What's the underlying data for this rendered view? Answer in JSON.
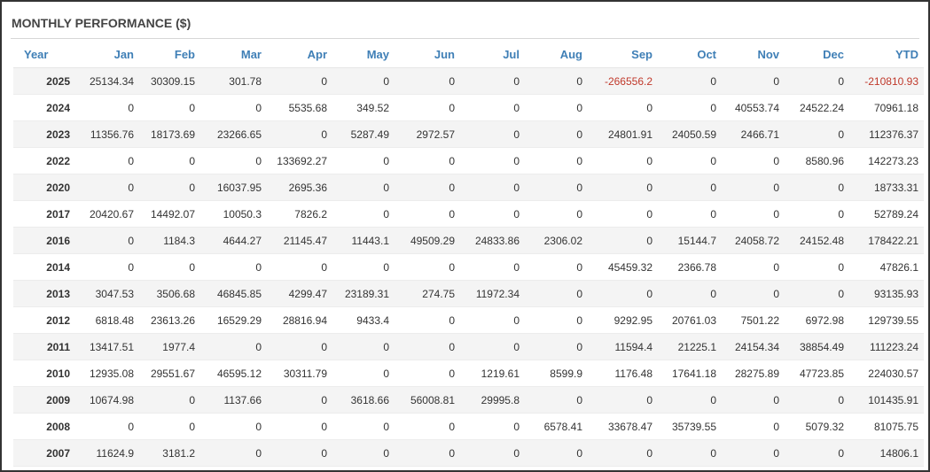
{
  "colors": {
    "header_text": "#3f7fb6",
    "negative_text": "#c0392b",
    "stripe": "#f4f4f4"
  },
  "chart_data": {
    "type": "table",
    "title": "MONTHLY PERFORMANCE ($)",
    "columns": [
      "Year",
      "Jan",
      "Feb",
      "Mar",
      "Apr",
      "May",
      "Jun",
      "Jul",
      "Aug",
      "Sep",
      "Oct",
      "Nov",
      "Dec",
      "YTD"
    ],
    "rows": [
      [
        "2025",
        "25134.34",
        "30309.15",
        "301.78",
        "0",
        "0",
        "0",
        "0",
        "0",
        "-266556.2",
        "0",
        "0",
        "0",
        "-210810.93"
      ],
      [
        "2024",
        "0",
        "0",
        "0",
        "5535.68",
        "349.52",
        "0",
        "0",
        "0",
        "0",
        "0",
        "40553.74",
        "24522.24",
        "70961.18"
      ],
      [
        "2023",
        "11356.76",
        "18173.69",
        "23266.65",
        "0",
        "5287.49",
        "2972.57",
        "0",
        "0",
        "24801.91",
        "24050.59",
        "2466.71",
        "0",
        "112376.37"
      ],
      [
        "2022",
        "0",
        "0",
        "0",
        "133692.27",
        "0",
        "0",
        "0",
        "0",
        "0",
        "0",
        "0",
        "8580.96",
        "142273.23"
      ],
      [
        "2020",
        "0",
        "0",
        "16037.95",
        "2695.36",
        "0",
        "0",
        "0",
        "0",
        "0",
        "0",
        "0",
        "0",
        "18733.31"
      ],
      [
        "2017",
        "20420.67",
        "14492.07",
        "10050.3",
        "7826.2",
        "0",
        "0",
        "0",
        "0",
        "0",
        "0",
        "0",
        "0",
        "52789.24"
      ],
      [
        "2016",
        "0",
        "1184.3",
        "4644.27",
        "21145.47",
        "11443.1",
        "49509.29",
        "24833.86",
        "2306.02",
        "0",
        "15144.7",
        "24058.72",
        "24152.48",
        "178422.21"
      ],
      [
        "2014",
        "0",
        "0",
        "0",
        "0",
        "0",
        "0",
        "0",
        "0",
        "45459.32",
        "2366.78",
        "0",
        "0",
        "47826.1"
      ],
      [
        "2013",
        "3047.53",
        "3506.68",
        "46845.85",
        "4299.47",
        "23189.31",
        "274.75",
        "11972.34",
        "0",
        "0",
        "0",
        "0",
        "0",
        "93135.93"
      ],
      [
        "2012",
        "6818.48",
        "23613.26",
        "16529.29",
        "28816.94",
        "9433.4",
        "0",
        "0",
        "0",
        "9292.95",
        "20761.03",
        "7501.22",
        "6972.98",
        "129739.55"
      ],
      [
        "2011",
        "13417.51",
        "1977.4",
        "0",
        "0",
        "0",
        "0",
        "0",
        "0",
        "11594.4",
        "21225.1",
        "24154.34",
        "38854.49",
        "111223.24"
      ],
      [
        "2010",
        "12935.08",
        "29551.67",
        "46595.12",
        "30311.79",
        "0",
        "0",
        "1219.61",
        "8599.9",
        "1176.48",
        "17641.18",
        "28275.89",
        "47723.85",
        "224030.57"
      ],
      [
        "2009",
        "10674.98",
        "0",
        "1137.66",
        "0",
        "3618.66",
        "56008.81",
        "29995.8",
        "0",
        "0",
        "0",
        "0",
        "0",
        "101435.91"
      ],
      [
        "2008",
        "0",
        "0",
        "0",
        "0",
        "0",
        "0",
        "0",
        "6578.41",
        "33678.47",
        "35739.55",
        "0",
        "5079.32",
        "81075.75"
      ],
      [
        "2007",
        "11624.9",
        "3181.2",
        "0",
        "0",
        "0",
        "0",
        "0",
        "0",
        "0",
        "0",
        "0",
        "0",
        "14806.1"
      ]
    ]
  }
}
